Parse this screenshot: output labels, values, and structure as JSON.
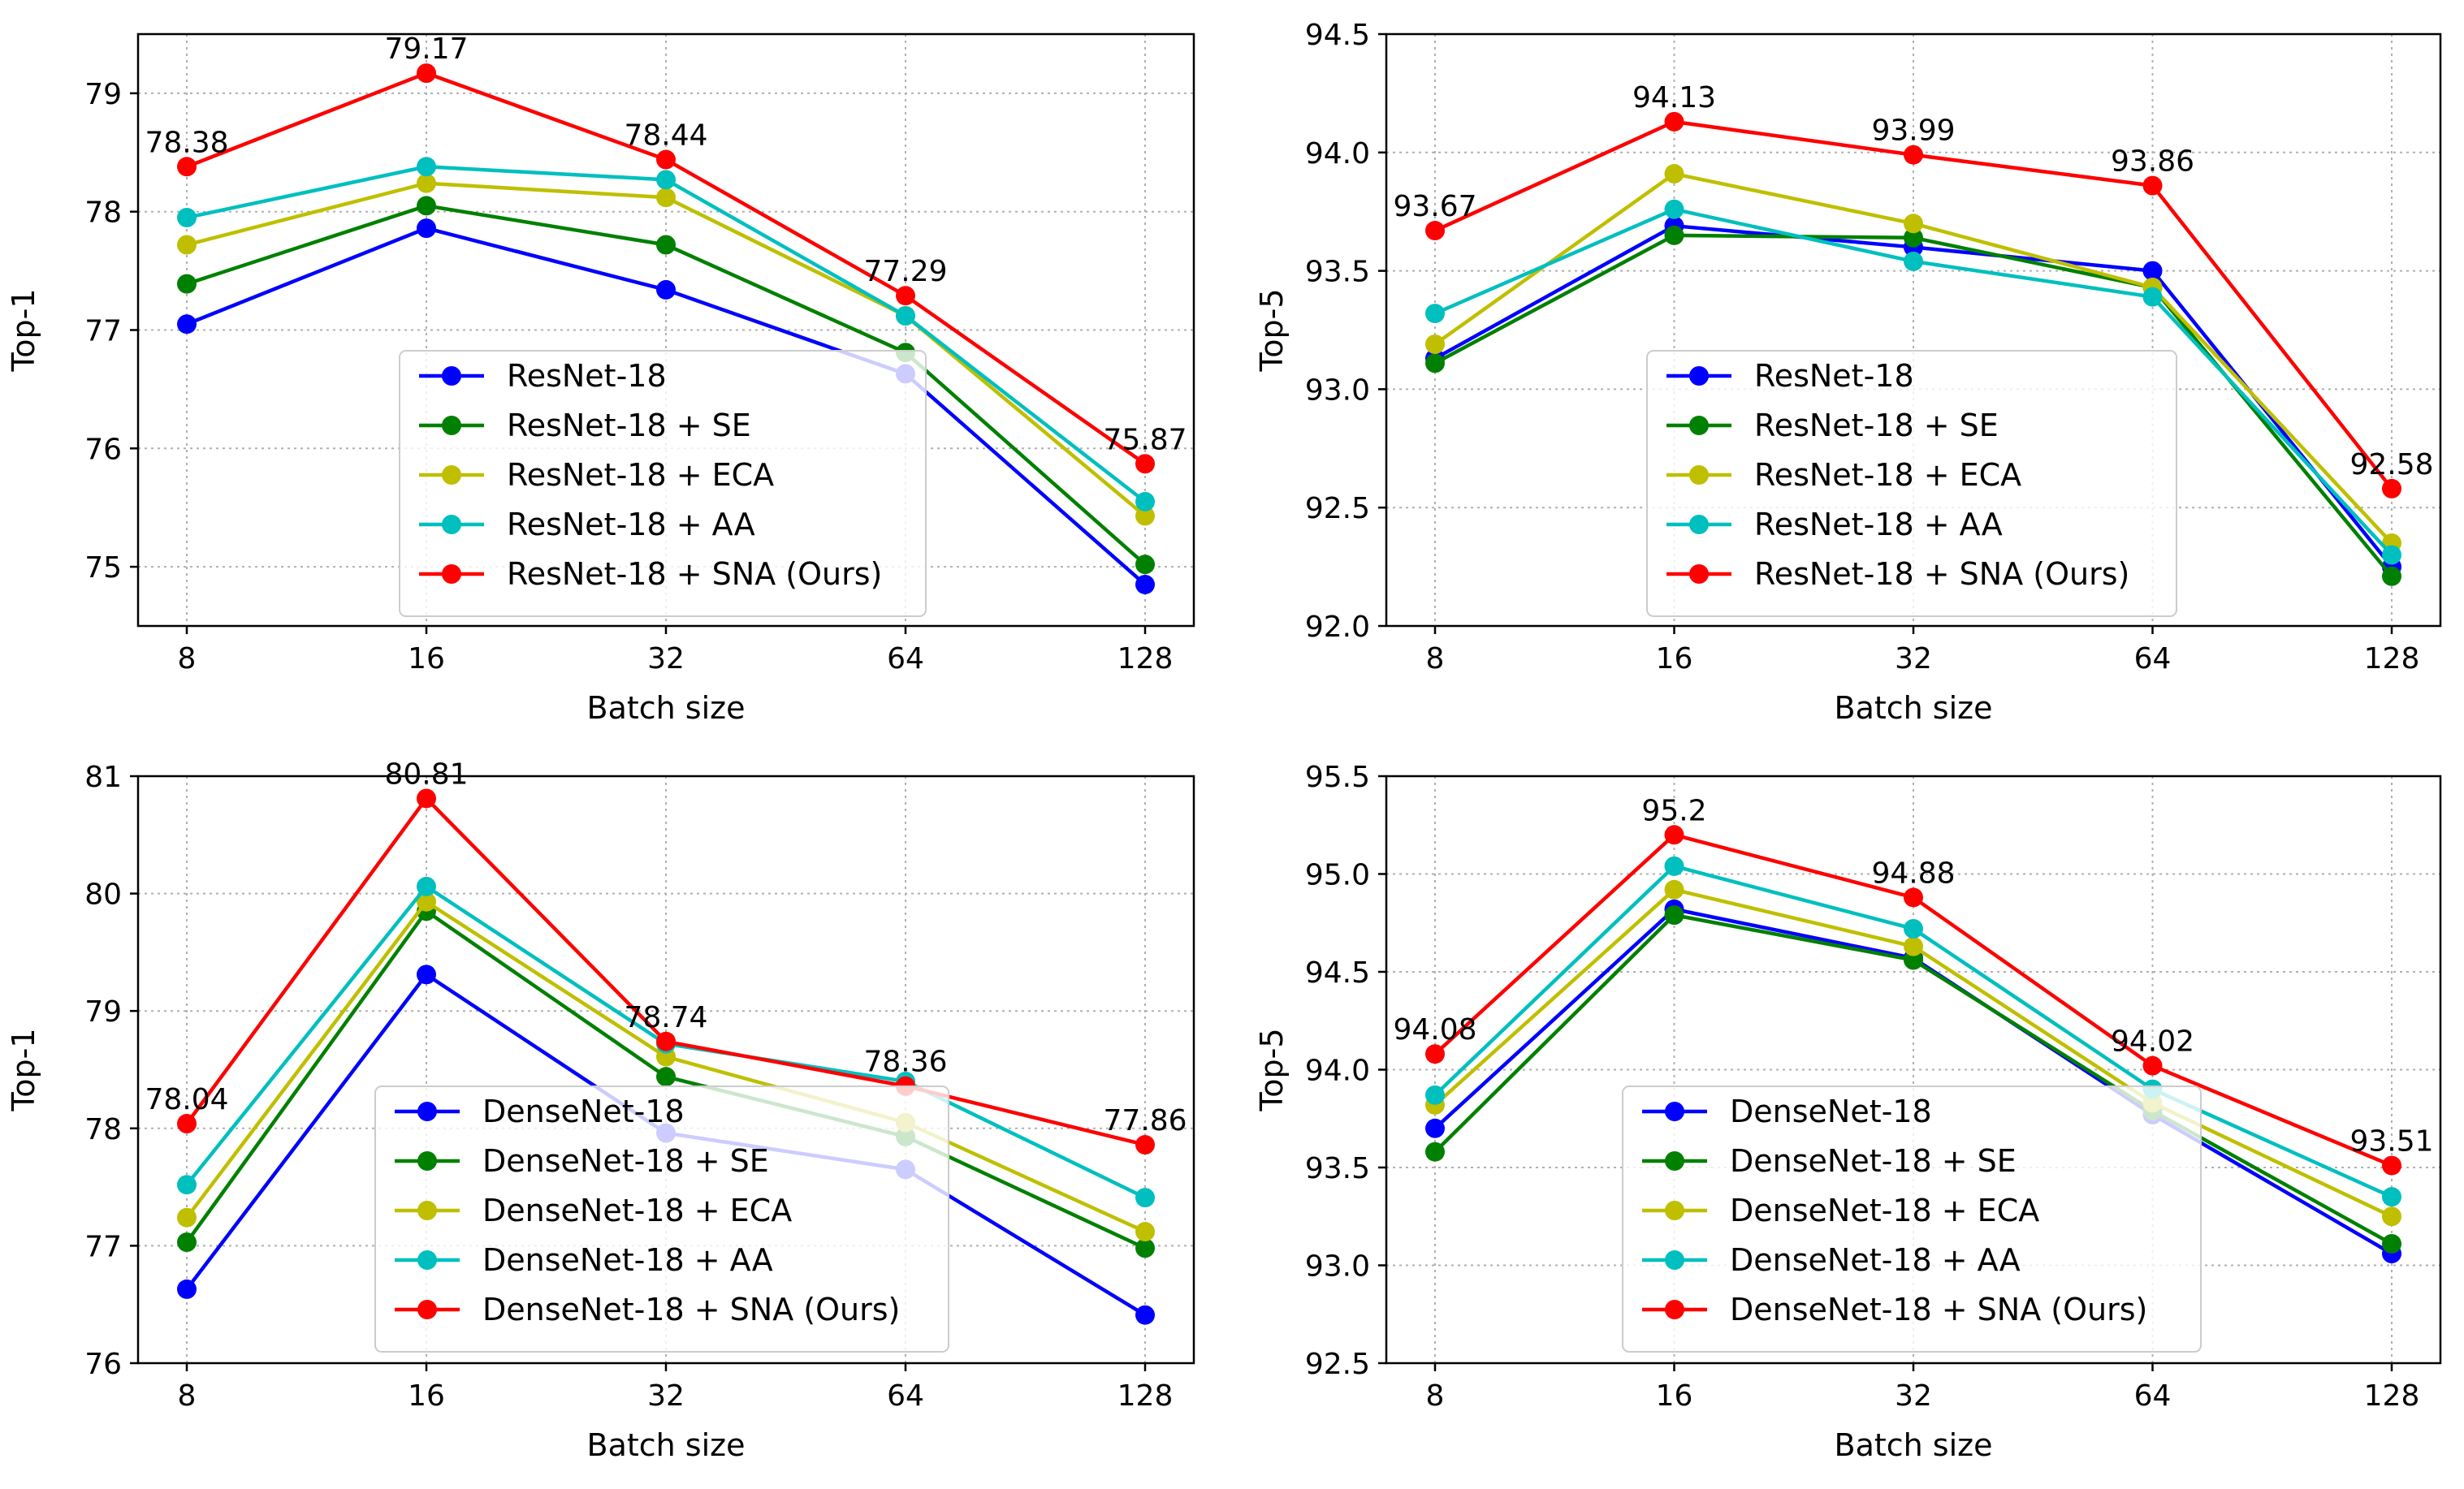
{
  "chart_data": [
    {
      "type": "line",
      "xlabel": "Batch size",
      "ylabel": "Top-1",
      "categories": [
        "8",
        "16",
        "32",
        "64",
        "128"
      ],
      "ylim": [
        74.5,
        79.5
      ],
      "yticks": [
        75,
        76,
        77,
        78,
        79
      ],
      "grid": true,
      "legend_position": "bottom-center",
      "series": [
        {
          "name": "ResNet-18",
          "color": "#0000ff",
          "values": [
            77.05,
            77.86,
            77.34,
            76.63,
            74.85
          ]
        },
        {
          "name": "ResNet-18 + SE",
          "color": "#008000",
          "values": [
            77.39,
            78.05,
            77.72,
            76.81,
            75.02
          ]
        },
        {
          "name": "ResNet-18 + ECA",
          "color": "#bfbf00",
          "values": [
            77.72,
            78.24,
            78.12,
            77.12,
            75.43
          ]
        },
        {
          "name": "ResNet-18 + AA",
          "color": "#00bfbf",
          "values": [
            77.95,
            78.38,
            78.27,
            77.12,
            75.55
          ]
        },
        {
          "name": "ResNet-18 + SNA (Ours)",
          "color": "#ff0000",
          "values": [
            78.38,
            79.17,
            78.44,
            77.29,
            75.87
          ],
          "labels": [
            "78.38",
            "79.17",
            "78.44",
            "77.29",
            "75.87"
          ]
        }
      ]
    },
    {
      "type": "line",
      "xlabel": "Batch size",
      "ylabel": "Top-5",
      "categories": [
        "8",
        "16",
        "32",
        "64",
        "128"
      ],
      "ylim": [
        92.0,
        94.5
      ],
      "yticks": [
        "92.0",
        "92.5",
        "93.0",
        "93.5",
        "94.0",
        "94.5"
      ],
      "grid": true,
      "legend_position": "bottom-center",
      "series": [
        {
          "name": "ResNet-18",
          "color": "#0000ff",
          "values": [
            93.13,
            93.69,
            93.6,
            93.5,
            92.25
          ]
        },
        {
          "name": "ResNet-18 + SE",
          "color": "#008000",
          "values": [
            93.11,
            93.65,
            93.64,
            93.43,
            92.21
          ]
        },
        {
          "name": "ResNet-18 + ECA",
          "color": "#bfbf00",
          "values": [
            93.19,
            93.91,
            93.7,
            93.43,
            92.35
          ]
        },
        {
          "name": "ResNet-18 + AA",
          "color": "#00bfbf",
          "values": [
            93.32,
            93.76,
            93.54,
            93.39,
            92.3
          ]
        },
        {
          "name": "ResNet-18 + SNA (Ours)",
          "color": "#ff0000",
          "values": [
            93.67,
            94.13,
            93.99,
            93.86,
            92.58
          ],
          "labels": [
            "93.67",
            "94.13",
            "93.99",
            "93.86",
            "92.58"
          ]
        }
      ]
    },
    {
      "type": "line",
      "xlabel": "Batch size",
      "ylabel": "Top-1",
      "categories": [
        "8",
        "16",
        "32",
        "64",
        "128"
      ],
      "ylim": [
        76,
        81
      ],
      "yticks": [
        76,
        77,
        78,
        79,
        80,
        81
      ],
      "grid": true,
      "legend_position": "bottom-center",
      "series": [
        {
          "name": "DenseNet-18",
          "color": "#0000ff",
          "values": [
            76.63,
            79.31,
            77.96,
            77.65,
            76.41
          ]
        },
        {
          "name": "DenseNet-18 + SE",
          "color": "#008000",
          "values": [
            77.03,
            79.85,
            78.44,
            77.93,
            76.98
          ]
        },
        {
          "name": "DenseNet-18 + ECA",
          "color": "#bfbf00",
          "values": [
            77.24,
            79.93,
            78.61,
            78.05,
            77.12
          ]
        },
        {
          "name": "DenseNet-18 + AA",
          "color": "#00bfbf",
          "values": [
            77.52,
            80.06,
            78.72,
            78.4,
            77.41
          ]
        },
        {
          "name": "DenseNet-18 + SNA (Ours)",
          "color": "#ff0000",
          "values": [
            78.04,
            80.81,
            78.74,
            78.36,
            77.86
          ],
          "labels": [
            "78.04",
            "80.81",
            "78.74",
            "78.36",
            "77.86"
          ]
        }
      ]
    },
    {
      "type": "line",
      "xlabel": "Batch size",
      "ylabel": "Top-5",
      "categories": [
        "8",
        "16",
        "32",
        "64",
        "128"
      ],
      "ylim": [
        92.5,
        95.5
      ],
      "yticks": [
        "92.5",
        "93.0",
        "93.5",
        "94.0",
        "94.5",
        "95.0",
        "95.5"
      ],
      "grid": true,
      "legend_position": "bottom-center",
      "series": [
        {
          "name": "DenseNet-18",
          "color": "#0000ff",
          "values": [
            93.7,
            94.82,
            94.57,
            93.77,
            93.06
          ]
        },
        {
          "name": "DenseNet-18 + SE",
          "color": "#008000",
          "values": [
            93.58,
            94.79,
            94.56,
            93.79,
            93.11
          ]
        },
        {
          "name": "DenseNet-18 + ECA",
          "color": "#bfbf00",
          "values": [
            93.82,
            94.92,
            94.63,
            93.83,
            93.25
          ]
        },
        {
          "name": "DenseNet-18 + AA",
          "color": "#00bfbf",
          "values": [
            93.87,
            95.04,
            94.72,
            93.9,
            93.35
          ]
        },
        {
          "name": "DenseNet-18 + SNA (Ours)",
          "color": "#ff0000",
          "values": [
            94.08,
            95.2,
            94.88,
            94.02,
            93.51
          ],
          "labels": [
            "94.08",
            "95.2",
            "94.88",
            "94.02",
            "93.51"
          ]
        }
      ]
    }
  ]
}
